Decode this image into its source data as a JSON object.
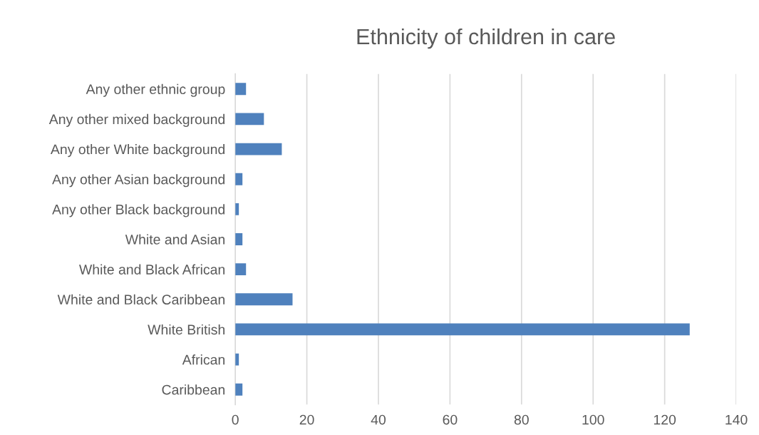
{
  "chart_data": {
    "type": "bar",
    "orientation": "horizontal",
    "title": "Ethnicity of children in care",
    "categories": [
      "Any other ethnic group",
      "Any other mixed background",
      "Any other White background",
      "Any other Asian background",
      "Any other Black background",
      "White and Asian",
      "White and Black African",
      "White and Black Caribbean",
      "White British",
      "African",
      "Caribbean"
    ],
    "values": [
      3,
      8,
      13,
      2,
      1,
      2,
      3,
      16,
      127,
      1,
      2
    ],
    "color": "#4f81bd",
    "xlim": [
      0,
      140
    ],
    "xticks": [
      0,
      20,
      40,
      60,
      80,
      100,
      120,
      140
    ],
    "grid": "x"
  }
}
